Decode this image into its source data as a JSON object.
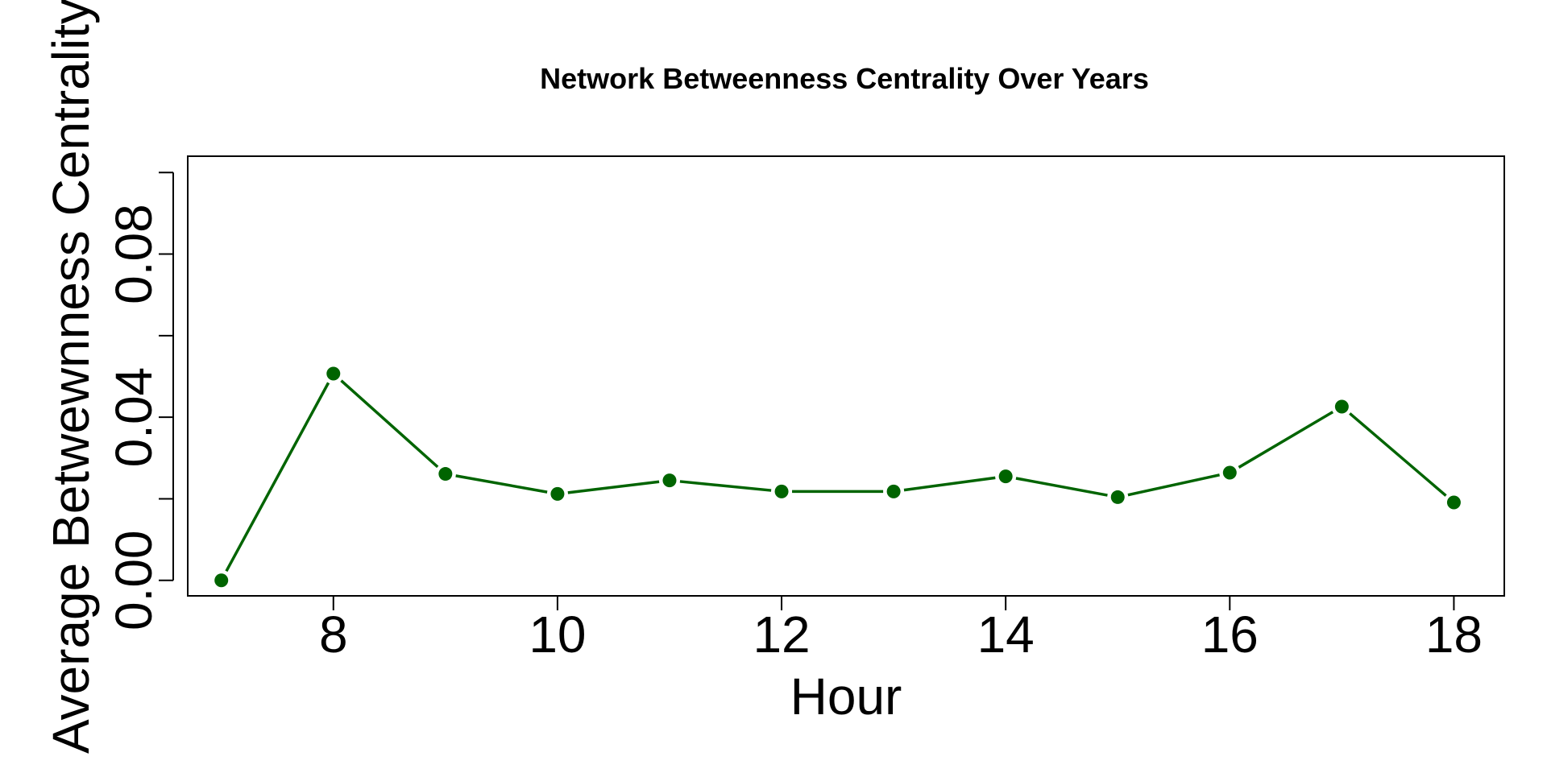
{
  "chart_data": {
    "type": "line",
    "title": "Network Betweenness Centrality Over Years",
    "xlabel": "Hour",
    "ylabel": "Average Betwewnness Centrality",
    "x": [
      7,
      8,
      9,
      10,
      11,
      12,
      13,
      14,
      15,
      16,
      17,
      18
    ],
    "series": [
      {
        "values": [
          0.0,
          0.0507,
          0.0261,
          0.0212,
          0.0245,
          0.0218,
          0.0218,
          0.0255,
          0.0204,
          0.0264,
          0.0426,
          0.0191
        ],
        "color": "#006400"
      }
    ],
    "xlim": [
      6.7,
      18.45
    ],
    "ylim": [
      -0.0038,
      0.104
    ],
    "xticks": [
      8,
      10,
      12,
      14,
      16,
      18
    ],
    "xtick_labels": [
      "8",
      "10",
      "12",
      "14",
      "16",
      "18"
    ],
    "yticks": [
      0.0,
      0.02,
      0.04,
      0.06,
      0.08,
      0.1
    ],
    "ytick_labels": [
      "0.00",
      "",
      "0.04",
      "",
      "0.08",
      ""
    ],
    "grid": false,
    "legend": "none"
  }
}
